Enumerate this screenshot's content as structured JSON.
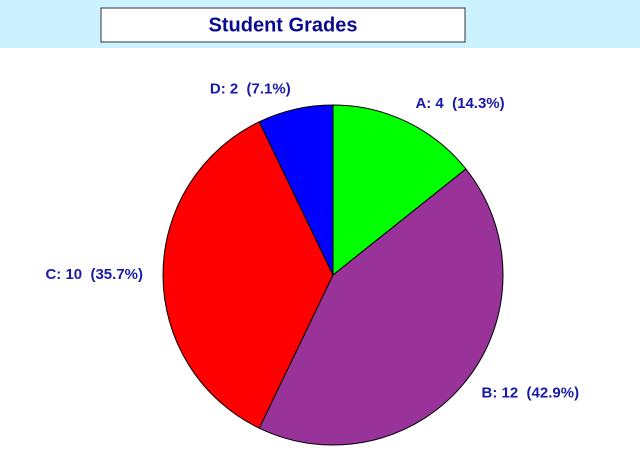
{
  "chart_data": {
    "type": "pie",
    "title": "Student Grades",
    "values": [
      4,
      12,
      10,
      2
    ],
    "value_labels": [
      "A: 4  (14.3%)",
      "B: 12  (42.9%)",
      "C: 10  (35.7%)",
      "D: 2  (7.1%)"
    ],
    "colors": [
      "#00ff00",
      "#993399",
      "#ff0000",
      "#0000ff"
    ]
  }
}
